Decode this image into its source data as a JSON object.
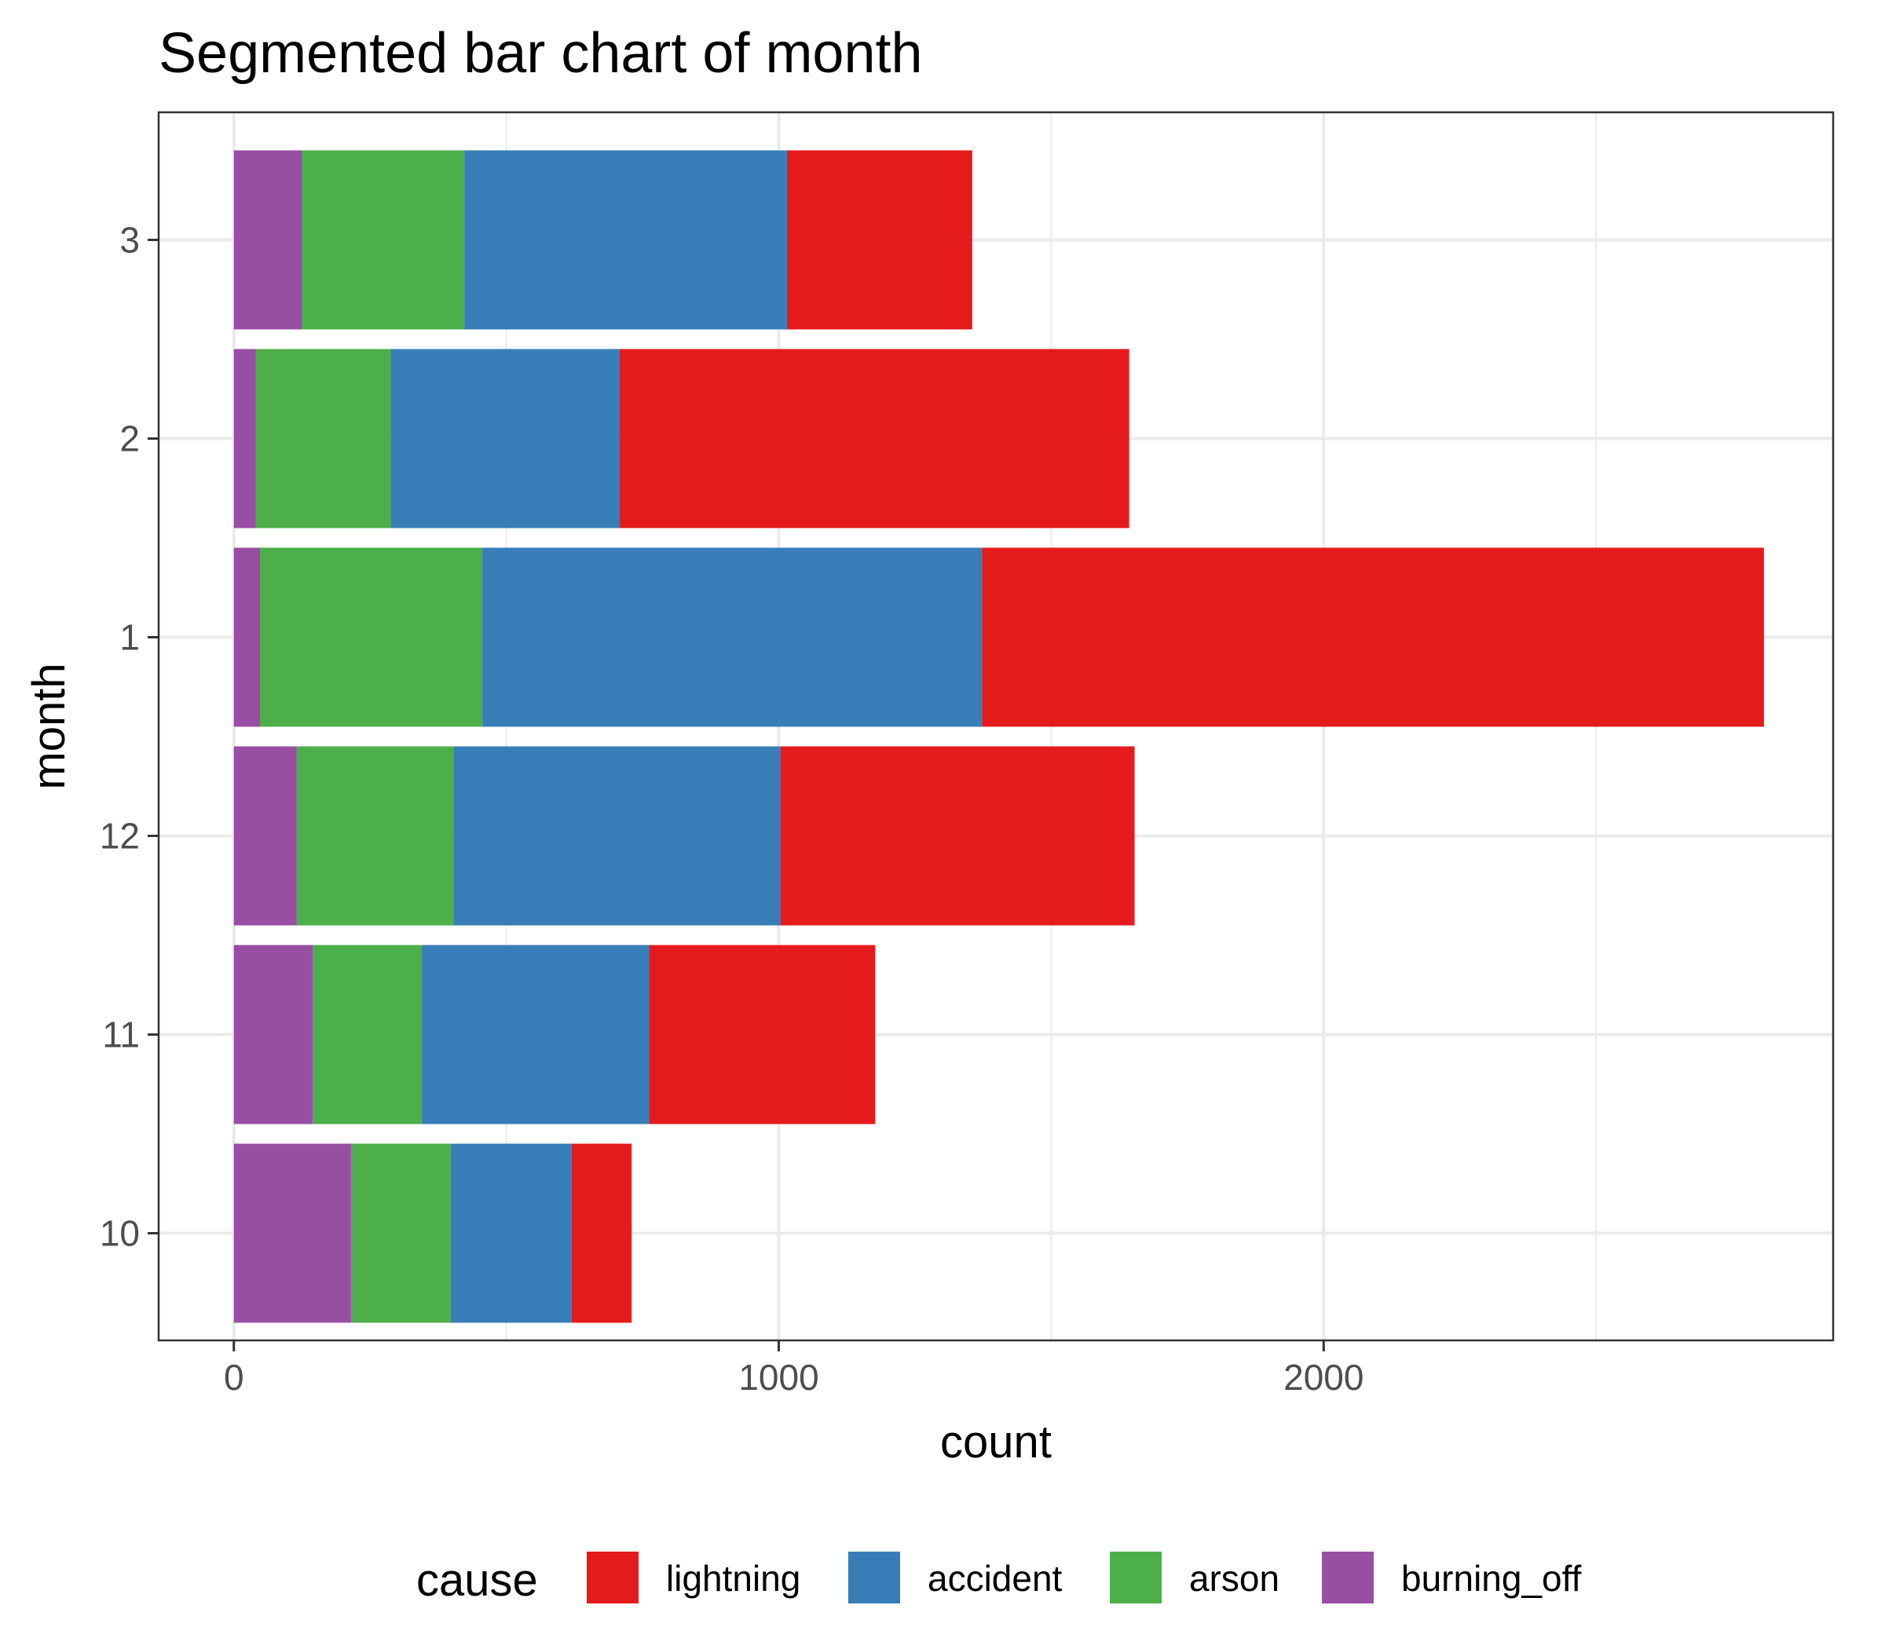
{
  "chart_data": {
    "type": "bar",
    "orientation": "horizontal",
    "stacked": true,
    "title": "Segmented bar chart of month",
    "xlabel": "count",
    "ylabel": "month",
    "categories": [
      "10",
      "11",
      "12",
      "1",
      "2",
      "3"
    ],
    "x_ticks": [
      "0",
      "1000",
      "2000"
    ],
    "x_tick_values": [
      0,
      1000,
      2000
    ],
    "xlim": [
      -138,
      2935
    ],
    "grid": true,
    "legend": {
      "title": "cause",
      "position": "bottom",
      "entries": [
        "lightning",
        "accident",
        "arson",
        "burning_off"
      ]
    },
    "stack_order": [
      "burning_off",
      "arson",
      "accident",
      "lightning"
    ],
    "series": [
      {
        "name": "lightning",
        "color": "#E41A1C",
        "values": [
          110,
          415,
          650,
          1435,
          935,
          340
        ]
      },
      {
        "name": "accident",
        "color": "#377EB8",
        "values": [
          222,
          417,
          600,
          917,
          420,
          592
        ]
      },
      {
        "name": "arson",
        "color": "#4DAF4A",
        "values": [
          183,
          200,
          288,
          408,
          248,
          298
        ]
      },
      {
        "name": "burning_off",
        "color": "#984EA3",
        "values": [
          215,
          145,
          115,
          48,
          40,
          125
        ]
      }
    ]
  }
}
